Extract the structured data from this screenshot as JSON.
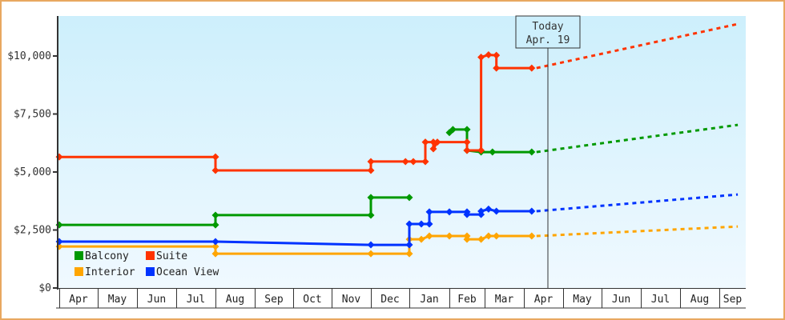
{
  "chart_data": {
    "type": "line",
    "title": "",
    "xlabel": "",
    "ylabel": "",
    "ylim": [
      0,
      11500
    ],
    "y_ticks": [
      {
        "value": 0,
        "label": "$0"
      },
      {
        "value": 2500,
        "label": "$2,500"
      },
      {
        "value": 5000,
        "label": "$5,000"
      },
      {
        "value": 7500,
        "label": "$7,500"
      },
      {
        "value": 10000,
        "label": "$10,000"
      }
    ],
    "x_categories": [
      "Apr",
      "May",
      "Jun",
      "Jul",
      "Aug",
      "Sep",
      "Oct",
      "Nov",
      "Dec",
      "Jan",
      "Feb",
      "Mar",
      "Apr",
      "May",
      "Jun",
      "Jul",
      "Aug",
      "Sep"
    ],
    "grid": false,
    "legend_position": "bottom-left inside plot",
    "annotation": {
      "line1": "Today",
      "line2": "Apr. 19"
    },
    "series": [
      {
        "name": "Balcony",
        "color": "#009900",
        "points": [
          [
            0.0,
            2720
          ],
          [
            4.0,
            2720
          ],
          [
            4.0,
            3140
          ],
          [
            8.0,
            3140
          ],
          [
            8.0,
            3900
          ],
          [
            9.0,
            3900
          ]
        ],
        "points_b": [
          [
            10.0,
            6700
          ],
          [
            10.1,
            6830
          ],
          [
            10.5,
            6830
          ],
          [
            10.5,
            5930
          ],
          [
            10.9,
            5860
          ],
          [
            11.2,
            5860
          ],
          [
            12.2,
            5860
          ]
        ],
        "forecast": [
          [
            12.2,
            5860
          ],
          [
            17.7,
            7030
          ]
        ]
      },
      {
        "name": "Suite",
        "color": "#ff3300",
        "points": [
          [
            0.0,
            5650
          ],
          [
            4.0,
            5650
          ],
          [
            4.0,
            5070
          ],
          [
            8.0,
            5070
          ],
          [
            8.0,
            5450
          ],
          [
            8.9,
            5450
          ],
          [
            9.1,
            5450
          ],
          [
            9.4,
            5450
          ],
          [
            9.4,
            6290
          ],
          [
            9.6,
            6290
          ],
          [
            9.6,
            6000
          ],
          [
            9.7,
            6290
          ],
          [
            10.5,
            6290
          ],
          [
            10.5,
            5930
          ],
          [
            10.9,
            5930
          ],
          [
            10.9,
            9950
          ],
          [
            11.1,
            10050
          ],
          [
            11.3,
            10030
          ],
          [
            11.3,
            9480
          ],
          [
            12.2,
            9480
          ]
        ],
        "forecast": [
          [
            12.2,
            9480
          ],
          [
            17.7,
            11380
          ]
        ]
      },
      {
        "name": "Interior",
        "color": "#ffa500",
        "points": [
          [
            0.0,
            1790
          ],
          [
            4.0,
            1790
          ],
          [
            4.0,
            1480
          ],
          [
            8.0,
            1480
          ],
          [
            9.0,
            1480
          ],
          [
            9.0,
            2100
          ],
          [
            9.3,
            2100
          ],
          [
            9.5,
            2240
          ],
          [
            10.0,
            2240
          ],
          [
            10.5,
            2240
          ],
          [
            10.5,
            2100
          ],
          [
            10.9,
            2100
          ],
          [
            11.1,
            2240
          ],
          [
            11.3,
            2240
          ],
          [
            12.2,
            2240
          ]
        ],
        "forecast": [
          [
            12.2,
            2240
          ],
          [
            17.7,
            2650
          ]
        ]
      },
      {
        "name": "Ocean View",
        "color": "#0033ff",
        "points": [
          [
            0.0,
            2000
          ],
          [
            4.0,
            2000
          ],
          [
            8.0,
            1860
          ],
          [
            9.0,
            1860
          ],
          [
            9.0,
            2760
          ],
          [
            9.3,
            2760
          ],
          [
            9.5,
            2760
          ],
          [
            9.5,
            3280
          ],
          [
            10.0,
            3280
          ],
          [
            10.5,
            3280
          ],
          [
            10.5,
            3170
          ],
          [
            10.9,
            3170
          ],
          [
            10.9,
            3310
          ],
          [
            11.1,
            3400
          ],
          [
            11.3,
            3310
          ],
          [
            12.2,
            3310
          ]
        ],
        "forecast": [
          [
            12.2,
            3310
          ],
          [
            17.7,
            4030
          ]
        ]
      }
    ]
  },
  "legend": {
    "items": [
      {
        "label": "Balcony",
        "color": "#009900"
      },
      {
        "label": "Suite",
        "color": "#ff3300"
      },
      {
        "label": "Interior",
        "color": "#ffa500"
      },
      {
        "label": "Ocean View",
        "color": "#0033ff"
      }
    ]
  },
  "today_marker": {
    "line1": "Today",
    "line2": "Apr. 19"
  },
  "colors": {
    "frame_border": "#e8a860",
    "plot_bg_top": "#cdeffc",
    "plot_bg_bottom": "#f0f9ff",
    "axis": "#333333"
  }
}
